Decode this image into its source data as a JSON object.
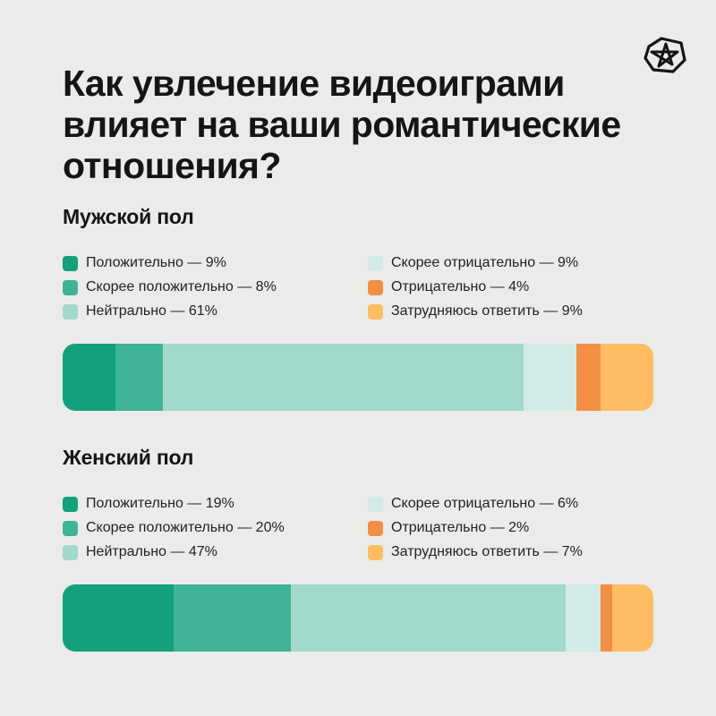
{
  "title": "Как увлечение видеоиграми влияет на ваши романтические отношения?",
  "colors": {
    "positive": "#13a07d",
    "rather_positive": "#3fb398",
    "neutral": "#a1d9ca",
    "rather_negative": "#d3ebe6",
    "negative": "#f28f45",
    "hard_to_say": "#ffbd63"
  },
  "chart_data": {
    "type": "bar",
    "stacked": true,
    "unit": "%",
    "groups": [
      {
        "name": "Мужской пол",
        "series": [
          {
            "name": "Положительно",
            "value": 9,
            "label": "Положительно — 9%",
            "color": "#13a07d"
          },
          {
            "name": "Скорее положительно",
            "value": 8,
            "label": "Скорее положительно — 8%",
            "color": "#3fb398"
          },
          {
            "name": "Нейтрально",
            "value": 61,
            "label": "Нейтрально — 61%",
            "color": "#a1d9ca"
          },
          {
            "name": "Скорее отрицательно",
            "value": 9,
            "label": "Скорее отрицательно — 9%",
            "color": "#d3ebe6"
          },
          {
            "name": "Отрицательно",
            "value": 4,
            "label": "Отрицательно — 4%",
            "color": "#f28f45"
          },
          {
            "name": "Затрудняюсь ответить",
            "value": 9,
            "label": "Затрудняюсь ответить — 9%",
            "color": "#ffbd63"
          }
        ]
      },
      {
        "name": "Женский пол",
        "series": [
          {
            "name": "Положительно",
            "value": 19,
            "label": "Положительно — 19%",
            "color": "#13a07d"
          },
          {
            "name": "Скорее положительно",
            "value": 20,
            "label": "Скорее положительно — 20%",
            "color": "#3fb398"
          },
          {
            "name": "Нейтрально",
            "value": 47,
            "label": "Нейтрально — 47%",
            "color": "#a1d9ca"
          },
          {
            "name": "Скорее отрицательно",
            "value": 6,
            "label": "Скорее отрицательно — 6%",
            "color": "#d3ebe6"
          },
          {
            "name": "Отрицательно",
            "value": 2,
            "label": "Отрицательно — 2%",
            "color": "#f28f45"
          },
          {
            "name": "Затрудняюсь ответить",
            "value": 7,
            "label": "Затрудняюсь ответить — 7%",
            "color": "#ffbd63"
          }
        ]
      }
    ]
  }
}
